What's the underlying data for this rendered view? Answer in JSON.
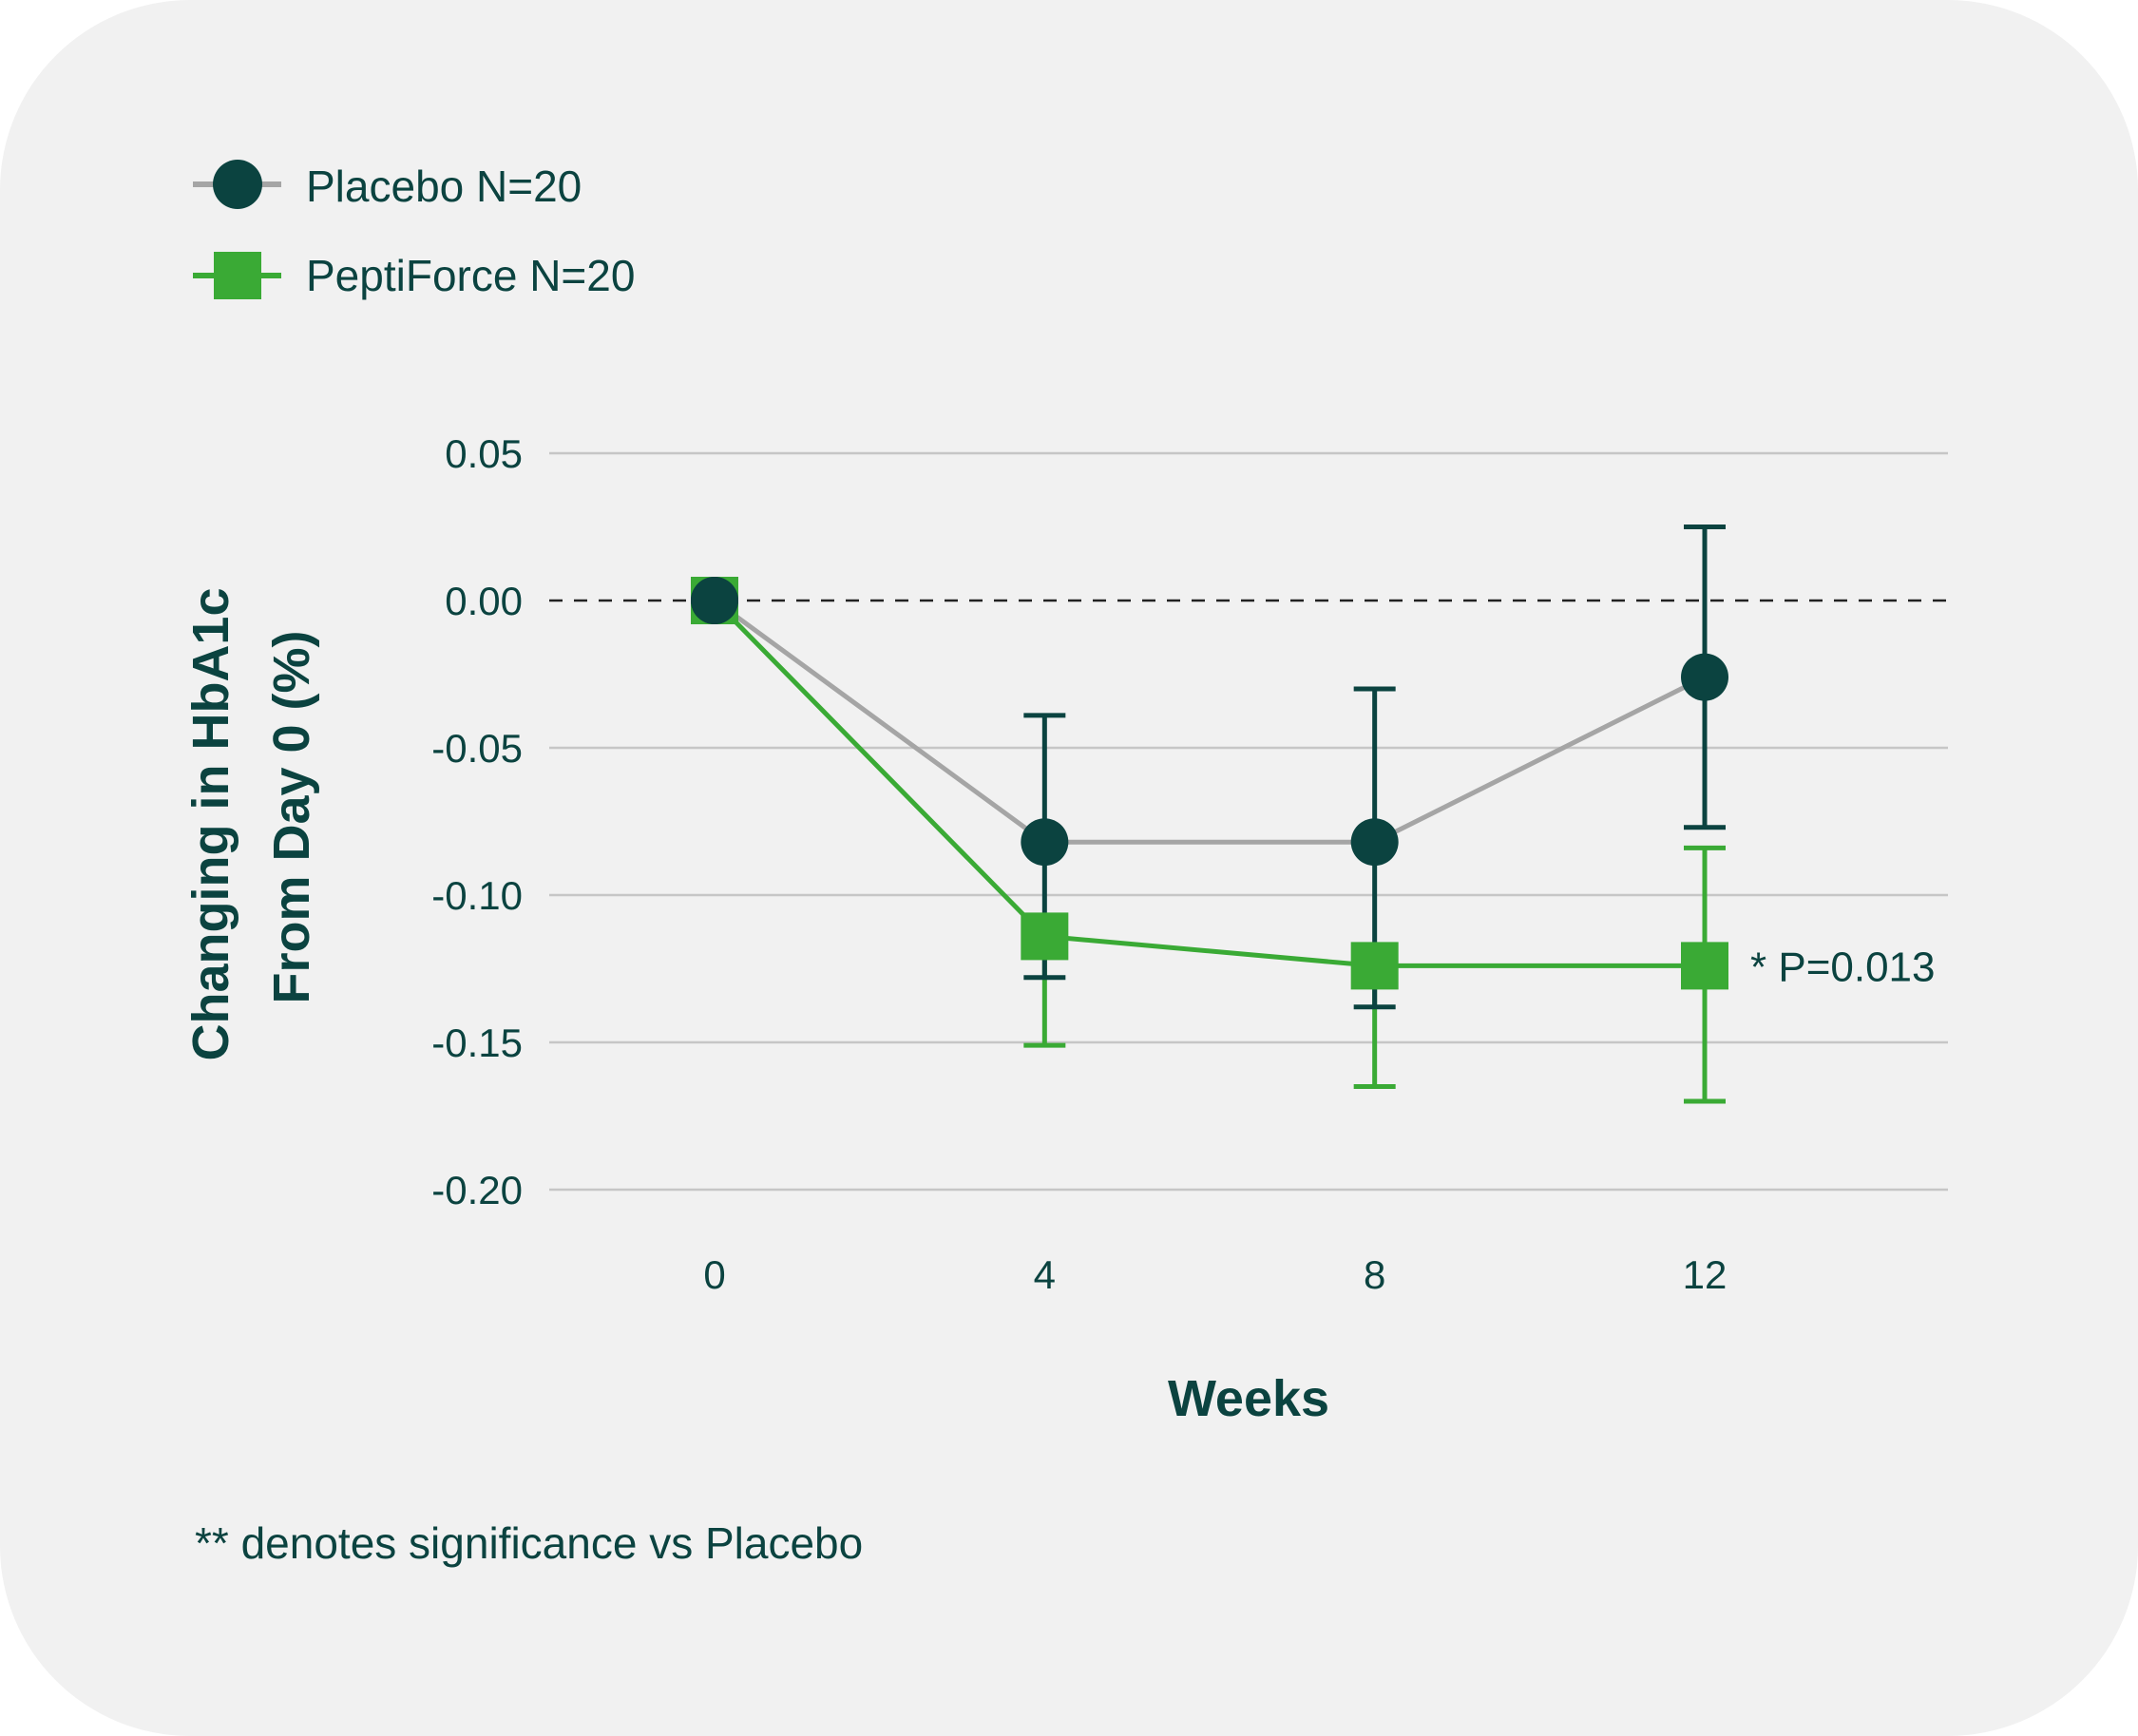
{
  "chart_data": {
    "type": "line",
    "x": [
      0,
      4,
      8,
      12
    ],
    "x_tick_labels": [
      "0",
      "4",
      "8",
      "12"
    ],
    "xlabel": "Weeks",
    "ylabel_lines": [
      "Changing in HbA1c",
      "From Day 0 (%)"
    ],
    "ylim": [
      -0.2,
      0.05
    ],
    "y_ticks": [
      0.05,
      0.0,
      -0.05,
      -0.1,
      -0.15,
      -0.2
    ],
    "y_tick_labels": [
      "0.05",
      "0.00",
      "-0.05",
      "-0.10",
      "-0.15",
      "-0.20"
    ],
    "reference_line": {
      "y": 0.0,
      "style": "dashed"
    },
    "grid": "horizontal",
    "legend_position": "top-left",
    "series": [
      {
        "name": "Placebo N=20",
        "marker": "circle",
        "line_color": "#a5a5a5",
        "marker_color": "#0b4340",
        "errorbar_color": "#0b4340",
        "y": [
          0.0,
          -0.082,
          -0.082,
          -0.026
        ],
        "err_low": [
          null,
          -0.128,
          -0.138,
          -0.077
        ],
        "err_high": [
          null,
          -0.039,
          -0.03,
          0.025
        ]
      },
      {
        "name": "PeptiForce N=20",
        "marker": "square",
        "line_color": "#3aaa35",
        "marker_color": "#3aaa35",
        "errorbar_color": "#3aaa35",
        "y": [
          0.0,
          -0.114,
          -0.124,
          -0.124
        ],
        "err_low": [
          null,
          -0.151,
          -0.165,
          -0.17
        ],
        "err_high": [
          null,
          null,
          null,
          -0.084
        ]
      }
    ],
    "annotation": {
      "text": "* P=0.013",
      "series": 1,
      "x": 12
    }
  },
  "footnote": "** denotes significance vs Placebo"
}
